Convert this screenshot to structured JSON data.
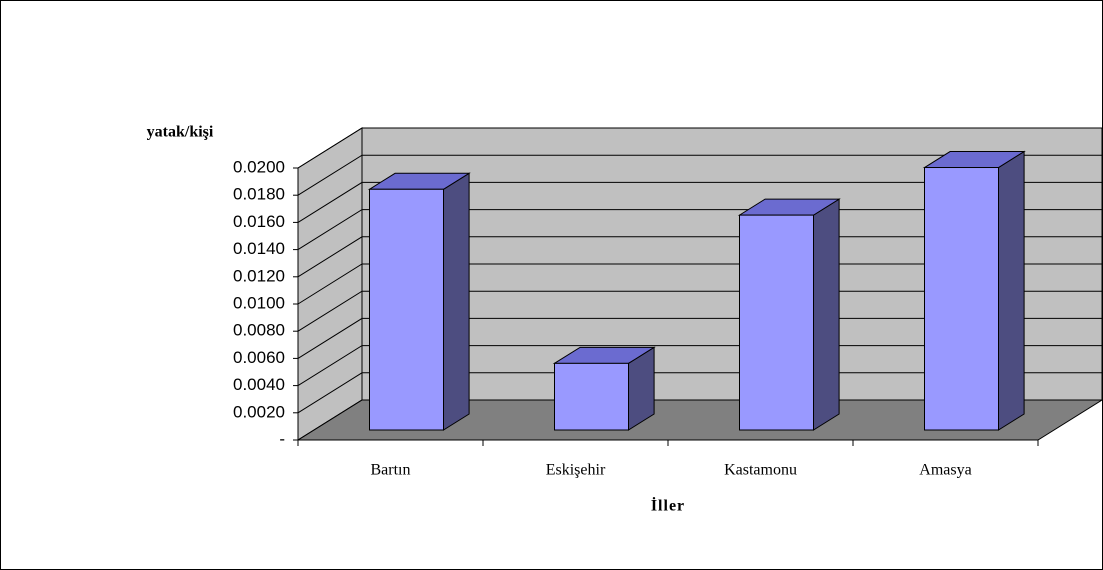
{
  "chart_data": {
    "type": "bar3d",
    "y_axis_label": "yatak/kişi",
    "x_axis_label": "İller",
    "categories": [
      "Bartın",
      "Eskişehir",
      "Kastamonu",
      "Amasya"
    ],
    "values": [
      0.0177,
      0.0049,
      0.0158,
      0.0193
    ],
    "color": "#9999ff",
    "side_color": "#4d4d80",
    "top_color": "#6b6bd0",
    "wall_color": "#c0c0c0",
    "floor_color": "#808080",
    "ylim": [
      0,
      0.02
    ],
    "yticks": [
      {
        "value": 0,
        "label": "-"
      },
      {
        "value": 0.002,
        "label": "0.0020"
      },
      {
        "value": 0.004,
        "label": "0.0040"
      },
      {
        "value": 0.006,
        "label": "0.0060"
      },
      {
        "value": 0.008,
        "label": "0.0080"
      },
      {
        "value": 0.01,
        "label": "0.0100"
      },
      {
        "value": 0.012,
        "label": "0.0120"
      },
      {
        "value": 0.014,
        "label": "0.0140"
      },
      {
        "value": 0.016,
        "label": "0.0160"
      },
      {
        "value": 0.018,
        "label": "0.0180"
      },
      {
        "value": 0.02,
        "label": "0.0200"
      }
    ],
    "grid": true
  }
}
